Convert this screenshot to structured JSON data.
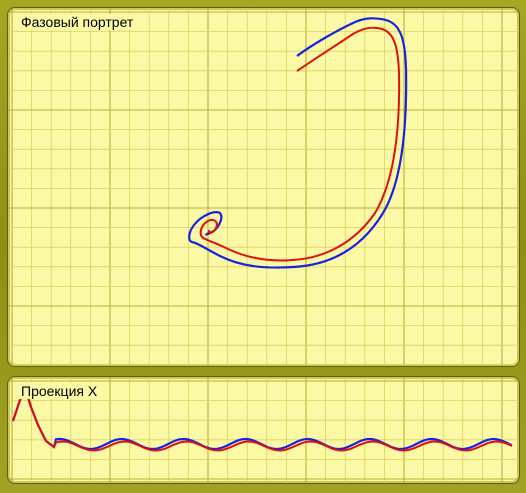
{
  "window": {
    "phase_title": "Фазовый портрет",
    "projection_title": "Проекция X"
  },
  "colors": {
    "background": "#fbf8a6",
    "frame": "#9a9a1e",
    "grid_minor": "#d9d45c",
    "grid_major": "#b7b036",
    "series_blue": "#1a22e0",
    "series_red": "#e01010"
  },
  "chart_data": [
    {
      "type": "line",
      "title": "Фазовый портрет",
      "description_of_series": "two trajectories spiraling into a focus",
      "grid": true,
      "series": [
        {
          "color": "#1a22e0"
        },
        {
          "color": "#e01010"
        }
      ]
    },
    {
      "type": "line",
      "title": "Проекция X",
      "grid": true,
      "series": [
        {
          "color": "#1a22e0"
        },
        {
          "color": "#e01010"
        }
      ]
    }
  ]
}
